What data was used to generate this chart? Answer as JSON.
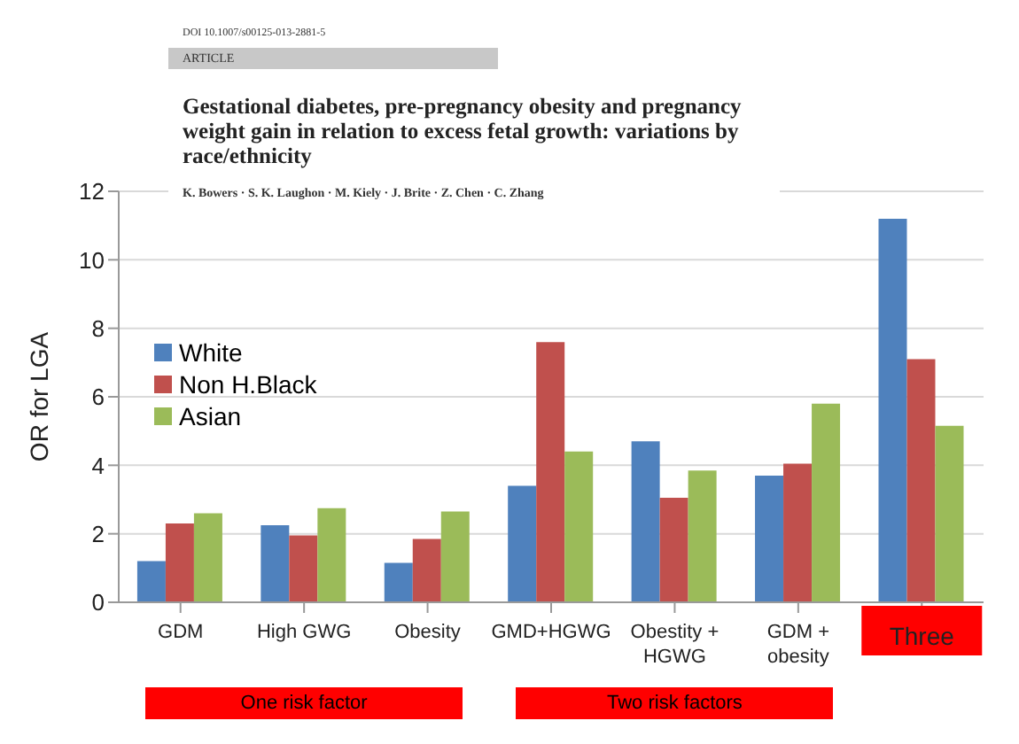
{
  "chart_data": {
    "type": "bar",
    "title": "Gestational diabetes, pre-pregnancy obesity and pregnancy weight gain in relation to excess fetal growth: variations by race/ethnicity",
    "subtitle": "K. Bowers · S. K. Laughon · M. Kiely · J. Brite · Z. Chen · C. Zhang",
    "ylabel": "OR for LGA",
    "annotations": [
      "DOI 10.1007/s00125-013-2881-5",
      "ARTICLE",
      "One risk factor",
      "Two risk factors"
    ],
    "categories": [
      "GDM",
      "High GWG",
      "Obesity",
      "GMD+HGWG",
      "Obestity + HGWG",
      "GDM + obesity",
      "Three"
    ],
    "series": [
      {
        "name": "White",
        "color": "#4f81bd",
        "values": [
          1.2,
          2.25,
          1.15,
          3.4,
          4.7,
          3.7,
          11.2
        ]
      },
      {
        "name": "Non H.Black",
        "color": "#c0504d",
        "values": [
          2.3,
          1.95,
          1.85,
          7.6,
          3.05,
          4.05,
          7.1
        ]
      },
      {
        "name": "Asian",
        "color": "#9bbb59",
        "values": [
          2.6,
          2.75,
          2.65,
          4.4,
          3.85,
          5.8,
          5.15
        ]
      }
    ],
    "ylim": [
      0,
      12
    ],
    "yticks": [
      0,
      2,
      4,
      6,
      8,
      10,
      12
    ],
    "grid": "y",
    "legend": "top left"
  }
}
